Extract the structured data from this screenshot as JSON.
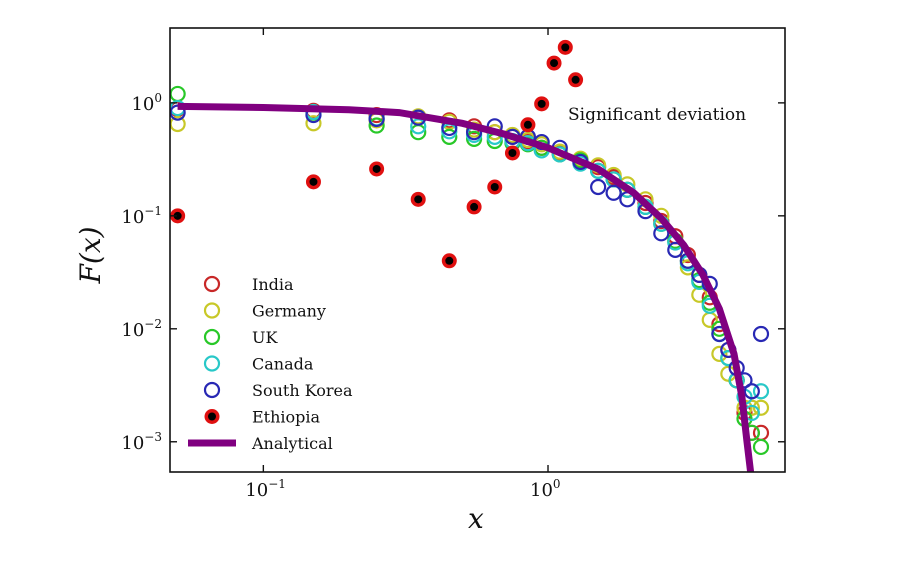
{
  "chart_data": {
    "type": "scatter",
    "xlabel": "x",
    "ylabel": "F(x)",
    "xscale": "log",
    "yscale": "log",
    "xlim": [
      0.047,
      6.8
    ],
    "ylim": [
      0.00054,
      4.6
    ],
    "grid": false,
    "legend_position": "bottom-left",
    "x_ticks": [
      {
        "value": 0.1,
        "base": "10",
        "exp": "−1"
      },
      {
        "value": 1,
        "base": "10",
        "exp": "0"
      }
    ],
    "y_ticks": [
      {
        "value": 1,
        "base": "10",
        "exp": "0"
      },
      {
        "value": 0.1,
        "base": "10",
        "exp": "−1"
      },
      {
        "value": 0.01,
        "base": "10",
        "exp": "−2"
      },
      {
        "value": 0.001,
        "base": "10",
        "exp": "−3"
      }
    ],
    "annotation": "Significant deviation",
    "x": [
      0.05,
      0.15,
      0.25,
      0.35,
      0.45,
      0.55,
      0.65,
      0.75,
      0.85,
      0.95,
      1.1,
      1.3,
      1.5,
      1.7,
      1.9,
      2.2,
      2.5,
      2.8,
      3.1,
      3.4,
      3.7,
      4.0,
      4.3,
      4.6,
      4.9,
      5.2,
      5.6
    ],
    "series": [
      {
        "name": "India",
        "color": "#c82828",
        "marker": "open-circle",
        "values": [
          0.88,
          0.85,
          0.78,
          0.74,
          0.7,
          0.62,
          0.55,
          0.5,
          0.45,
          0.4,
          0.36,
          0.3,
          0.27,
          0.22,
          0.17,
          0.13,
          0.09,
          0.066,
          0.045,
          0.03,
          0.019,
          0.011,
          0.0065,
          0.0035,
          0.0018,
          0.0012,
          0.0012
        ]
      },
      {
        "name": "Germany",
        "color": "#c8c828",
        "marker": "open-circle",
        "values": [
          0.65,
          0.66,
          0.7,
          0.76,
          0.68,
          0.58,
          0.55,
          0.52,
          0.47,
          0.43,
          0.37,
          0.32,
          0.28,
          0.23,
          0.19,
          0.14,
          0.1,
          0.06,
          0.035,
          0.02,
          0.012,
          0.006,
          0.004,
          0.0035,
          0.002,
          0.002,
          0.002
        ]
      },
      {
        "name": "UK",
        "color": "#28c828",
        "marker": "open-circle",
        "values": [
          1.2,
          0.82,
          0.63,
          0.55,
          0.5,
          0.48,
          0.46,
          0.44,
          0.43,
          0.4,
          0.35,
          0.31,
          0.25,
          0.21,
          0.17,
          0.12,
          0.085,
          0.06,
          0.04,
          0.027,
          0.017,
          0.01,
          0.0055,
          0.0035,
          0.0016,
          0.0012,
          0.0009
        ]
      },
      {
        "name": "Canada",
        "color": "#28c8c8",
        "marker": "open-circle",
        "values": [
          0.9,
          0.83,
          0.73,
          0.62,
          0.56,
          0.52,
          0.5,
          0.46,
          0.44,
          0.38,
          0.35,
          0.29,
          0.25,
          0.21,
          0.17,
          0.12,
          0.085,
          0.058,
          0.038,
          0.026,
          0.016,
          0.009,
          0.0055,
          0.0035,
          0.0025,
          0.0018,
          0.0028
        ]
      },
      {
        "name": "South Korea",
        "color": "#2828b4",
        "marker": "open-circle",
        "values": [
          0.82,
          0.78,
          0.72,
          0.74,
          0.6,
          0.55,
          0.62,
          0.5,
          0.5,
          0.45,
          0.4,
          0.3,
          0.18,
          0.16,
          0.14,
          0.11,
          0.07,
          0.05,
          0.04,
          0.03,
          0.025,
          0.009,
          0.0065,
          0.0045,
          0.0035,
          0.0028,
          0.009
        ]
      },
      {
        "name": "Ethiopia",
        "color": "#e01010",
        "marker": "filled-circle-black-center",
        "x": [
          0.05,
          0.15,
          0.25,
          0.35,
          0.45,
          0.55,
          0.65,
          0.75,
          0.85,
          0.95,
          1.05,
          1.15,
          1.25
        ],
        "values": [
          0.1,
          0.2,
          0.26,
          0.14,
          0.04,
          0.12,
          0.18,
          0.36,
          0.64,
          0.98,
          2.25,
          3.1,
          1.6
        ]
      },
      {
        "name": "Analytical",
        "color": "#800080",
        "marker": "line",
        "x": [
          0.05,
          0.1,
          0.2,
          0.3,
          0.5,
          0.7,
          1.0,
          1.5,
          2.0,
          2.5,
          3.0,
          3.5,
          4.0,
          4.5,
          4.8,
          5.0,
          5.15
        ],
        "values": [
          0.93,
          0.91,
          0.87,
          0.82,
          0.66,
          0.53,
          0.4,
          0.26,
          0.16,
          0.095,
          0.055,
          0.03,
          0.015,
          0.006,
          0.0025,
          0.001,
          0.0005
        ]
      }
    ]
  }
}
